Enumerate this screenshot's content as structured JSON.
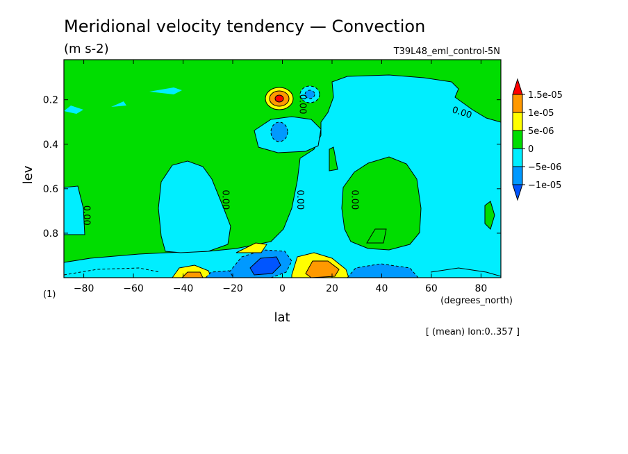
{
  "chart_data": {
    "type": "contour",
    "title": "Meridional velocity tendency — Convection",
    "units": "(m s-2)",
    "dataset": "T39L48_eml_control-5N",
    "xlabel": "lat",
    "xunits": "(degrees_north)",
    "ylabel": "lev",
    "yunits": "(1)",
    "footnote": "[ (mean) lon:0..357 ]",
    "xlim": [
      -88,
      88
    ],
    "ylim": [
      1.0,
      0.02
    ],
    "x_ticks": [
      -80,
      -60,
      -40,
      -20,
      0,
      20,
      40,
      60,
      80
    ],
    "x_tick_labels": [
      "−80",
      "−60",
      "−40",
      "−20",
      "0",
      "20",
      "40",
      "60",
      "80"
    ],
    "y_ticks": [
      0.2,
      0.4,
      0.6,
      0.8
    ],
    "y_tick_labels": [
      "0.2",
      "0.4",
      "0.6",
      "0.8"
    ],
    "colorbar": {
      "labels": [
        "1.5e-05",
        "1e-05",
        "5e-06",
        "0",
        "−5e-06",
        "−1e-05"
      ],
      "colors": [
        "#ff0000",
        "#ff9900",
        "#ffff00",
        "#00dd00",
        "#00eeff",
        "#0099ff",
        "#0055ff"
      ]
    },
    "contour_labels": [
      {
        "text": "0.00",
        "lat": 7,
        "lev": 0.22
      },
      {
        "text": "0.00",
        "lat": 72,
        "lev": 0.27
      },
      {
        "text": "0.00",
        "lat": -80,
        "lev": 0.72
      },
      {
        "text": "0.00",
        "lat": -24,
        "lev": 0.65
      },
      {
        "text": "0.00",
        "lat": 6,
        "lev": 0.65
      },
      {
        "text": "0.00",
        "lat": 28,
        "lev": 0.65
      }
    ]
  }
}
